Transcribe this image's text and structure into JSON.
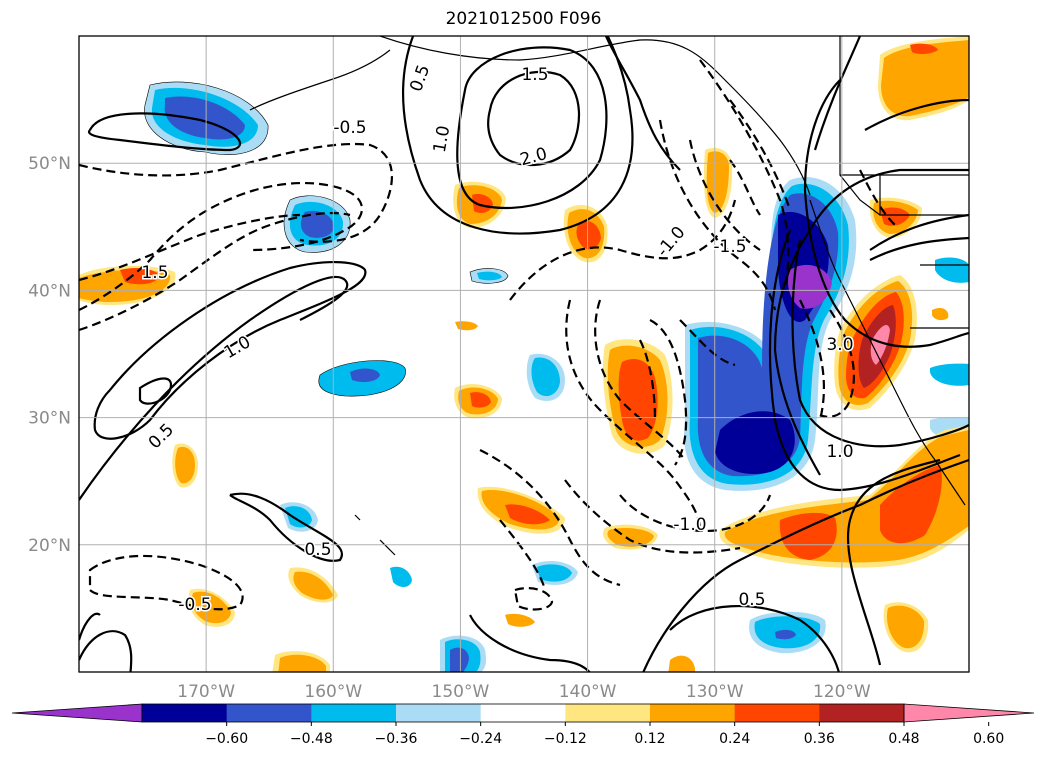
{
  "title": "2021012500 F096",
  "map": {
    "lat_labels": [
      {
        "text": "50°N",
        "lat": 50
      },
      {
        "text": "40°N",
        "lat": 40
      },
      {
        "text": "30°N",
        "lat": 30
      },
      {
        "text": "20°N",
        "lat": 20
      }
    ],
    "lon_labels": [
      {
        "text": "170°W",
        "lon": -170
      },
      {
        "text": "160°W",
        "lon": -160
      },
      {
        "text": "150°W",
        "lon": -150
      },
      {
        "text": "140°W",
        "lon": -140
      },
      {
        "text": "130°W",
        "lon": -130
      },
      {
        "text": "120°W",
        "lon": -120
      }
    ],
    "contour_labels": [
      "1.5",
      "2.0",
      "1.0",
      "0.5",
      "-0.5",
      "-1.0",
      "-1.5",
      "3.0",
      "1.0",
      "0.5",
      "1.5",
      "1.0",
      "0.5",
      "-0.5",
      "-1.0",
      "0.5"
    ],
    "colors": {
      "neg_060": "#9933cc",
      "neg_048": "#000099",
      "neg_036": "#3355cc",
      "neg_024": "#00bbee",
      "neg_012": "#aaddf5",
      "pos_012": "#ffe680",
      "pos_024": "#ffa500",
      "pos_036": "#ff4500",
      "pos_048": "#b22222",
      "pos_060": "#ff88aa"
    }
  },
  "colorbar": {
    "ticks": [
      "−0.60",
      "−0.48",
      "−0.36",
      "−0.24",
      "−0.12",
      "0.12",
      "0.24",
      "0.36",
      "0.48",
      "0.60"
    ],
    "bins": [
      "#9933cc",
      "#000099",
      "#3355cc",
      "#00bbee",
      "#aaddf5",
      "#ffffff",
      "#ffe680",
      "#ffa500",
      "#ff4500",
      "#b22222",
      "#ff88aa"
    ]
  }
}
